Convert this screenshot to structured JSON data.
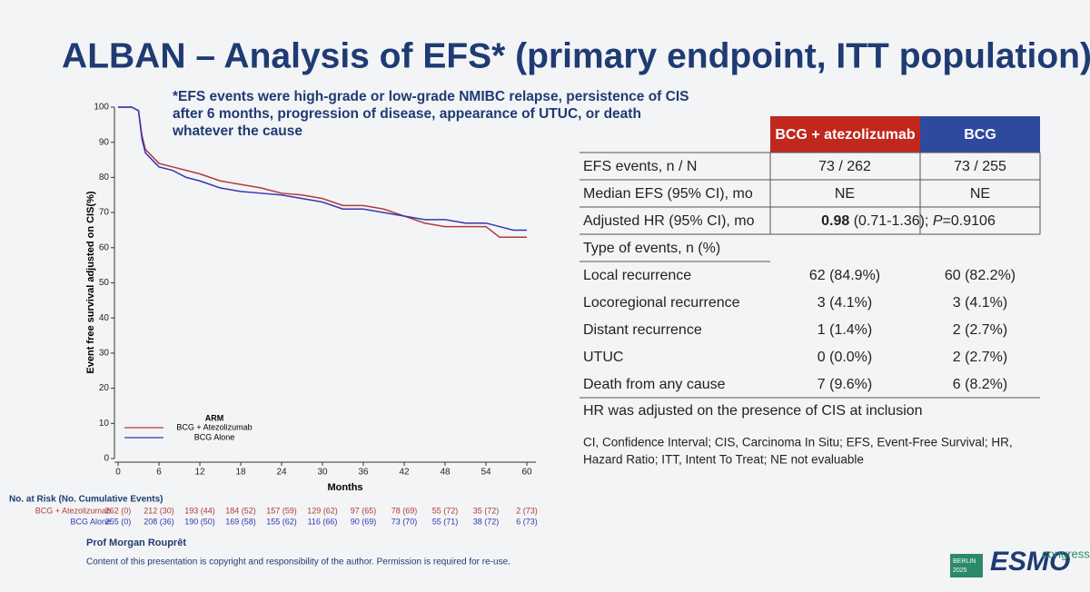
{
  "slide": {
    "title": "ALBAN – Analysis of EFS* (primary endpoint, ITT population)",
    "footnote": [
      "*EFS events were high-grade or low-grade NMIBC relapse, persistence of CIS",
      "after 6 months, progression of disease, appearance of UTUC, or death",
      "whatever the cause"
    ],
    "presenter": "Prof Morgan Rouprêt",
    "copyright": "Content of this presentation is copyright and responsibility of the author. Permission is required for re-use.",
    "logo": {
      "city": "BERLIN",
      "year": "2025",
      "name": "ESMO",
      "suffix": "congress"
    }
  },
  "chart_data": {
    "type": "line",
    "step": true,
    "y_label": "Event free survival adjusted on CIS(%)",
    "x_label": "Months",
    "x": [
      0,
      2,
      3,
      3.5,
      4,
      5,
      6,
      8,
      10,
      12,
      15,
      18,
      21,
      24,
      27,
      30,
      33,
      36,
      39,
      42,
      45,
      48,
      51,
      54,
      56,
      58,
      60
    ],
    "series": [
      {
        "name": "BCG + Atezolizumab",
        "color": "#b23a3a",
        "values": [
          100,
          100,
          99,
          92,
          88,
          86,
          84,
          83,
          82,
          81,
          79,
          78,
          77,
          75.5,
          75,
          74,
          72,
          72,
          71,
          69,
          67,
          66,
          66,
          66,
          63,
          63,
          63
        ]
      },
      {
        "name": "BCG Alone",
        "color": "#3535b5",
        "values": [
          100,
          100,
          99,
          91,
          87,
          85,
          83,
          82,
          80,
          79,
          77,
          76,
          75.5,
          75,
          74,
          73,
          71,
          71,
          70,
          69,
          68,
          68,
          67,
          67,
          66,
          65,
          65
        ]
      }
    ],
    "xlim": [
      0,
      60
    ],
    "xticks": [
      0,
      6,
      12,
      18,
      24,
      30,
      36,
      42,
      48,
      54,
      60
    ],
    "ylim": [
      0,
      100
    ],
    "yticks": [
      0,
      10,
      20,
      30,
      40,
      50,
      60,
      70,
      80,
      90,
      100
    ],
    "legend_title": "ARM",
    "at_risk": {
      "title": "No. at Risk (No. Cumulative Events)",
      "rows": [
        [
          "262 (0)",
          "212 (30)",
          "193 (44)",
          "184 (52)",
          "157 (59)",
          "129 (62)",
          "97 (65)",
          "78 (69)",
          "55 (72)",
          "35 (72)",
          "2 (73)"
        ],
        [
          "255 (0)",
          "208 (36)",
          "190 (50)",
          "169 (58)",
          "155 (62)",
          "116 (66)",
          "90 (69)",
          "73 (70)",
          "55 (71)",
          "38 (72)",
          "6 (73)"
        ]
      ]
    }
  },
  "table": {
    "headers": [
      {
        "text": "BCG + atezolizumab",
        "color": "#c0281e"
      },
      {
        "text": "BCG",
        "color": "#2e4a9e"
      }
    ],
    "rows": [
      [
        "EFS events, n / N",
        "73 / 262",
        "73 / 255"
      ],
      [
        "Median EFS (95% CI), mo",
        "NE",
        "NE"
      ]
    ],
    "hr": {
      "label": "Adjusted HR (95% CI), mo",
      "value": "0.98",
      "ci": " (0.71-1.36); ",
      "p": "P",
      "p_value": "=0.9106"
    },
    "section": "Type of events, n (%)",
    "events": [
      [
        "Local recurrence",
        "62 (84.9%)",
        "60 (82.2%)"
      ],
      [
        "Locoregional recurrence",
        "3 (4.1%)",
        "3 (4.1%)"
      ],
      [
        "Distant recurrence",
        "1 (1.4%)",
        "2 (2.7%)"
      ],
      [
        "UTUC",
        "0 (0.0%)",
        "2 (2.7%)"
      ],
      [
        "Death from any cause",
        "7 (9.6%)",
        "6 (8.2%)"
      ]
    ],
    "note": "HR was adjusted on the presence of CIS at inclusion",
    "abbreviations": [
      "CI, Confidence Interval; CIS, Carcinoma In Situ; EFS, Event-Free Survival; HR,",
      "Hazard Ratio; ITT, Intent To Treat; NE not evaluable"
    ]
  }
}
